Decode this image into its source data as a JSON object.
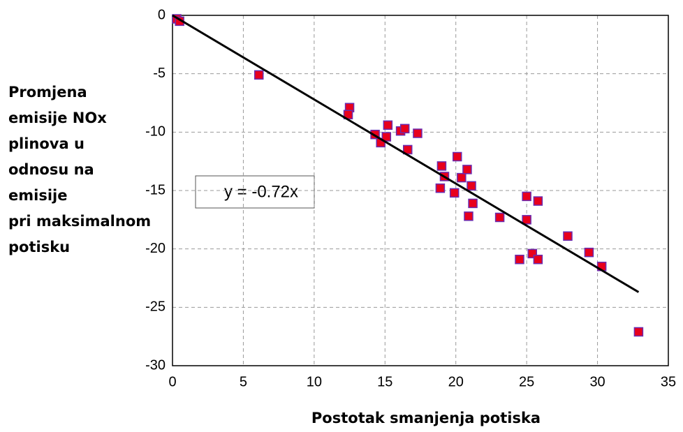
{
  "chart_data": {
    "type": "scatter",
    "xlabel": "Postotak smanjenja potiska",
    "ylabel": [
      "Promjena",
      "emisije NOx",
      "plinova u",
      "odnosu na",
      "emisije",
      "pri maksimalnom",
      "potisku"
    ],
    "annotation": "y = -0.72x",
    "xlim": [
      0,
      35
    ],
    "xticks": [
      0,
      5,
      10,
      15,
      20,
      25,
      30,
      35
    ],
    "ylim": [
      -30,
      0
    ],
    "yticks": [
      0,
      -5,
      -10,
      -15,
      -20,
      -25,
      -30
    ],
    "grid": true,
    "series": [
      {
        "color": "#e8001c",
        "edgecolor": "#6a2bb0",
        "x": [
          0.3,
          0.5,
          6.1,
          12.5,
          12.4,
          14.3,
          14.7,
          15.1,
          15.2,
          16.1,
          16.4,
          16.6,
          17.3,
          19.0,
          19.2,
          18.9,
          19.9,
          20.1,
          20.4,
          20.8,
          21.1,
          21.2,
          20.9,
          23.1,
          25.0,
          25.0,
          25.8,
          24.5,
          25.4,
          25.8,
          27.9,
          29.4,
          30.3,
          32.9
        ],
        "values": [
          -0.3,
          -0.5,
          -5.1,
          -7.9,
          -8.5,
          -10.2,
          -10.9,
          -10.4,
          -9.4,
          -9.9,
          -9.7,
          -11.5,
          -10.1,
          -12.9,
          -13.8,
          -14.8,
          -15.2,
          -12.1,
          -13.9,
          -13.2,
          -14.6,
          -16.1,
          -17.2,
          -17.3,
          -15.5,
          -17.5,
          -15.9,
          -20.9,
          -20.4,
          -20.9,
          -18.9,
          -20.3,
          -21.5,
          -27.1
        ]
      },
      {
        "type": "line",
        "color": "#000000",
        "x": [
          0,
          32.9
        ],
        "values": [
          0,
          -23.7
        ]
      }
    ]
  }
}
